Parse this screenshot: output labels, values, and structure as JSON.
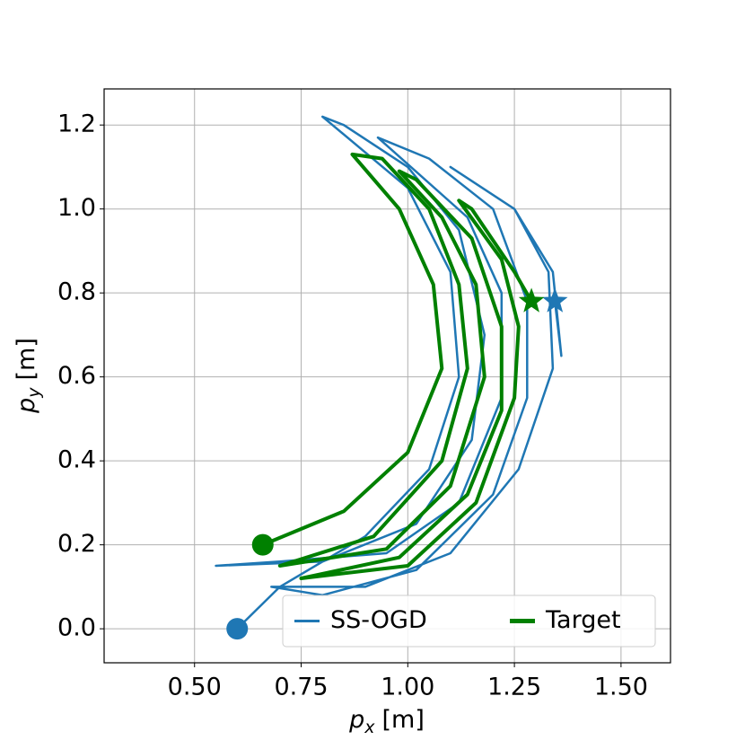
{
  "chart_data": {
    "type": "line",
    "xlabel": {
      "base": "p",
      "sub": "x",
      "unit": "[m]"
    },
    "ylabel": {
      "base": "p",
      "sub": "y",
      "unit": "[m]"
    },
    "xlim": [
      0.288,
      1.616
    ],
    "ylim": [
      -0.081,
      1.286
    ],
    "xticks": [
      {
        "value": 0.5,
        "label": "0.50"
      },
      {
        "value": 0.75,
        "label": "0.75"
      },
      {
        "value": 1.0,
        "label": "1.00"
      },
      {
        "value": 1.25,
        "label": "1.25"
      },
      {
        "value": 1.5,
        "label": "1.50"
      }
    ],
    "yticks": [
      {
        "value": 0.0,
        "label": "0.0"
      },
      {
        "value": 0.2,
        "label": "0.2"
      },
      {
        "value": 0.4,
        "label": "0.4"
      },
      {
        "value": 0.6,
        "label": "0.6"
      },
      {
        "value": 0.8,
        "label": "0.8"
      },
      {
        "value": 1.0,
        "label": "1.0"
      },
      {
        "value": 1.2,
        "label": "1.2"
      }
    ],
    "grid": true,
    "legend": "lower right",
    "markers": {
      "start": "circle",
      "end": "star"
    },
    "series": [
      {
        "name": "SS-OGD",
        "color": "#1f77b4",
        "x": [
          0.6,
          0.7,
          0.9,
          1.05,
          1.12,
          1.1,
          1.0,
          0.8,
          0.85,
          1.0,
          1.12,
          1.18,
          1.15,
          1.02,
          0.8,
          0.55,
          0.7,
          0.95,
          1.12,
          1.22,
          1.22,
          1.14,
          0.93,
          1.05,
          1.2,
          1.28,
          1.28,
          1.2,
          1.02,
          0.8,
          0.68,
          0.9,
          1.1,
          1.26,
          1.34,
          1.33,
          1.25,
          1.1,
          1.25,
          1.34,
          1.36,
          1.345
        ],
        "values": [
          0.0,
          0.1,
          0.22,
          0.38,
          0.6,
          0.85,
          1.05,
          1.22,
          1.2,
          1.1,
          0.95,
          0.7,
          0.45,
          0.25,
          0.16,
          0.15,
          0.16,
          0.18,
          0.3,
          0.55,
          0.8,
          0.98,
          1.17,
          1.12,
          1.0,
          0.78,
          0.55,
          0.32,
          0.14,
          0.08,
          0.1,
          0.1,
          0.18,
          0.38,
          0.62,
          0.85,
          1.0,
          1.1,
          1.0,
          0.85,
          0.65,
          0.78
        ]
      },
      {
        "name": "Target",
        "color": "#008000",
        "x": [
          0.66,
          0.85,
          1.0,
          1.08,
          1.06,
          0.98,
          0.87,
          0.94,
          1.05,
          1.12,
          1.14,
          1.08,
          0.92,
          0.7,
          0.95,
          1.1,
          1.18,
          1.16,
          1.08,
          0.98,
          1.02,
          1.15,
          1.22,
          1.22,
          1.14,
          0.98,
          0.75,
          1.0,
          1.16,
          1.25,
          1.26,
          1.22,
          1.12,
          1.15,
          1.25,
          1.29
        ],
        "values": [
          0.2,
          0.28,
          0.42,
          0.62,
          0.82,
          1.0,
          1.13,
          1.12,
          1.0,
          0.82,
          0.62,
          0.4,
          0.22,
          0.15,
          0.19,
          0.34,
          0.6,
          0.82,
          0.98,
          1.09,
          1.07,
          0.93,
          0.72,
          0.52,
          0.32,
          0.17,
          0.12,
          0.15,
          0.3,
          0.55,
          0.72,
          0.88,
          1.02,
          1.0,
          0.85,
          0.78
        ]
      }
    ]
  }
}
